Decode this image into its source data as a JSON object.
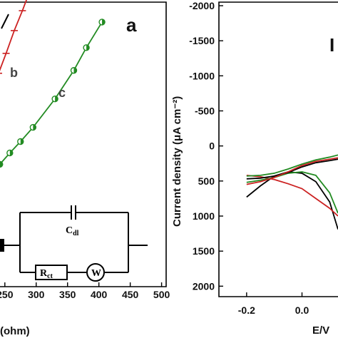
{
  "chart_data": [
    {
      "type": "line",
      "panel_label": "a",
      "xlabel": "(ohm)",
      "x_ticks": [
        250,
        300,
        350,
        400,
        450,
        500
      ],
      "x_tick_labels": [
        "250",
        "300",
        "350",
        "400",
        "450",
        "500"
      ],
      "xlim": [
        240,
        505
      ],
      "ylim": [
        0,
        1
      ],
      "series": [
        {
          "name": "b",
          "color": "#cc2222",
          "x": [
            240,
            252,
            265,
            278,
            290
          ],
          "y": [
            0.75,
            0.82,
            0.9,
            0.97,
            1.04
          ]
        },
        {
          "name": "c",
          "color": "#228b22",
          "x": [
            242,
            258,
            275,
            295,
            330,
            360,
            380,
            405
          ],
          "y": [
            0.43,
            0.47,
            0.51,
            0.56,
            0.66,
            0.76,
            0.84,
            0.93
          ]
        }
      ],
      "circuit": {
        "capacitor_label": "C",
        "capacitor_sub": "dl",
        "resistor_label": "R",
        "resistor_sub": "ct",
        "warburg_label": "W"
      }
    },
    {
      "type": "line",
      "panel_label": "b",
      "xlabel": "E/V",
      "ylabel": "Current density (μA cm⁻²)",
      "y_ticks": [
        -2000,
        -1500,
        -1000,
        -500,
        0,
        500,
        1000,
        1500,
        2000
      ],
      "y_tick_labels": [
        "-2000",
        "-1500",
        "-1000",
        "-500",
        "0",
        "500",
        "1000",
        "1500",
        "2000"
      ],
      "x_ticks": [
        -0.2,
        0.0
      ],
      "x_tick_labels": [
        "-0.2",
        "0.0"
      ],
      "xlim": [
        -0.3,
        0.13
      ],
      "ylim": [
        -2000,
        2200
      ],
      "y_inverted": true,
      "series": [
        {
          "name": "black",
          "color": "#000000",
          "x": [
            -0.2,
            -0.15,
            -0.1,
            -0.05,
            0.0,
            0.05,
            0.1,
            0.13
          ],
          "y": [
            780,
            620,
            480,
            420,
            440,
            560,
            850,
            1240
          ]
        },
        {
          "name": "red",
          "color": "#cc2222",
          "x": [
            -0.2,
            -0.15,
            -0.1,
            -0.05,
            0.0,
            0.05,
            0.1,
            0.13
          ],
          "y": [
            470,
            490,
            530,
            590,
            660,
            800,
            940,
            1050
          ]
        },
        {
          "name": "green",
          "color": "#228b22",
          "x": [
            -0.2,
            -0.15,
            -0.1,
            -0.05,
            0.0,
            0.05,
            0.1,
            0.13
          ],
          "y": [
            570,
            540,
            500,
            440,
            420,
            470,
            720,
            1010
          ]
        },
        {
          "name": "black2",
          "color": "#000000",
          "x": [
            -0.2,
            -0.15,
            -0.1,
            -0.05,
            0.0,
            0.05,
            0.1,
            0.13
          ],
          "y": [
            520,
            510,
            480,
            430,
            350,
            290,
            260,
            240
          ]
        },
        {
          "name": "red2",
          "color": "#cc2222",
          "x": [
            -0.2,
            -0.15,
            -0.1,
            -0.05,
            0.0,
            0.05,
            0.1,
            0.13
          ],
          "y": [
            600,
            560,
            500,
            420,
            330,
            270,
            240,
            220
          ]
        },
        {
          "name": "green2",
          "color": "#228b22",
          "x": [
            -0.2,
            -0.15,
            -0.1,
            -0.05,
            0.0,
            0.05,
            0.1,
            0.13
          ],
          "y": [
            480,
            470,
            440,
            380,
            310,
            250,
            210,
            180
          ]
        }
      ]
    }
  ]
}
